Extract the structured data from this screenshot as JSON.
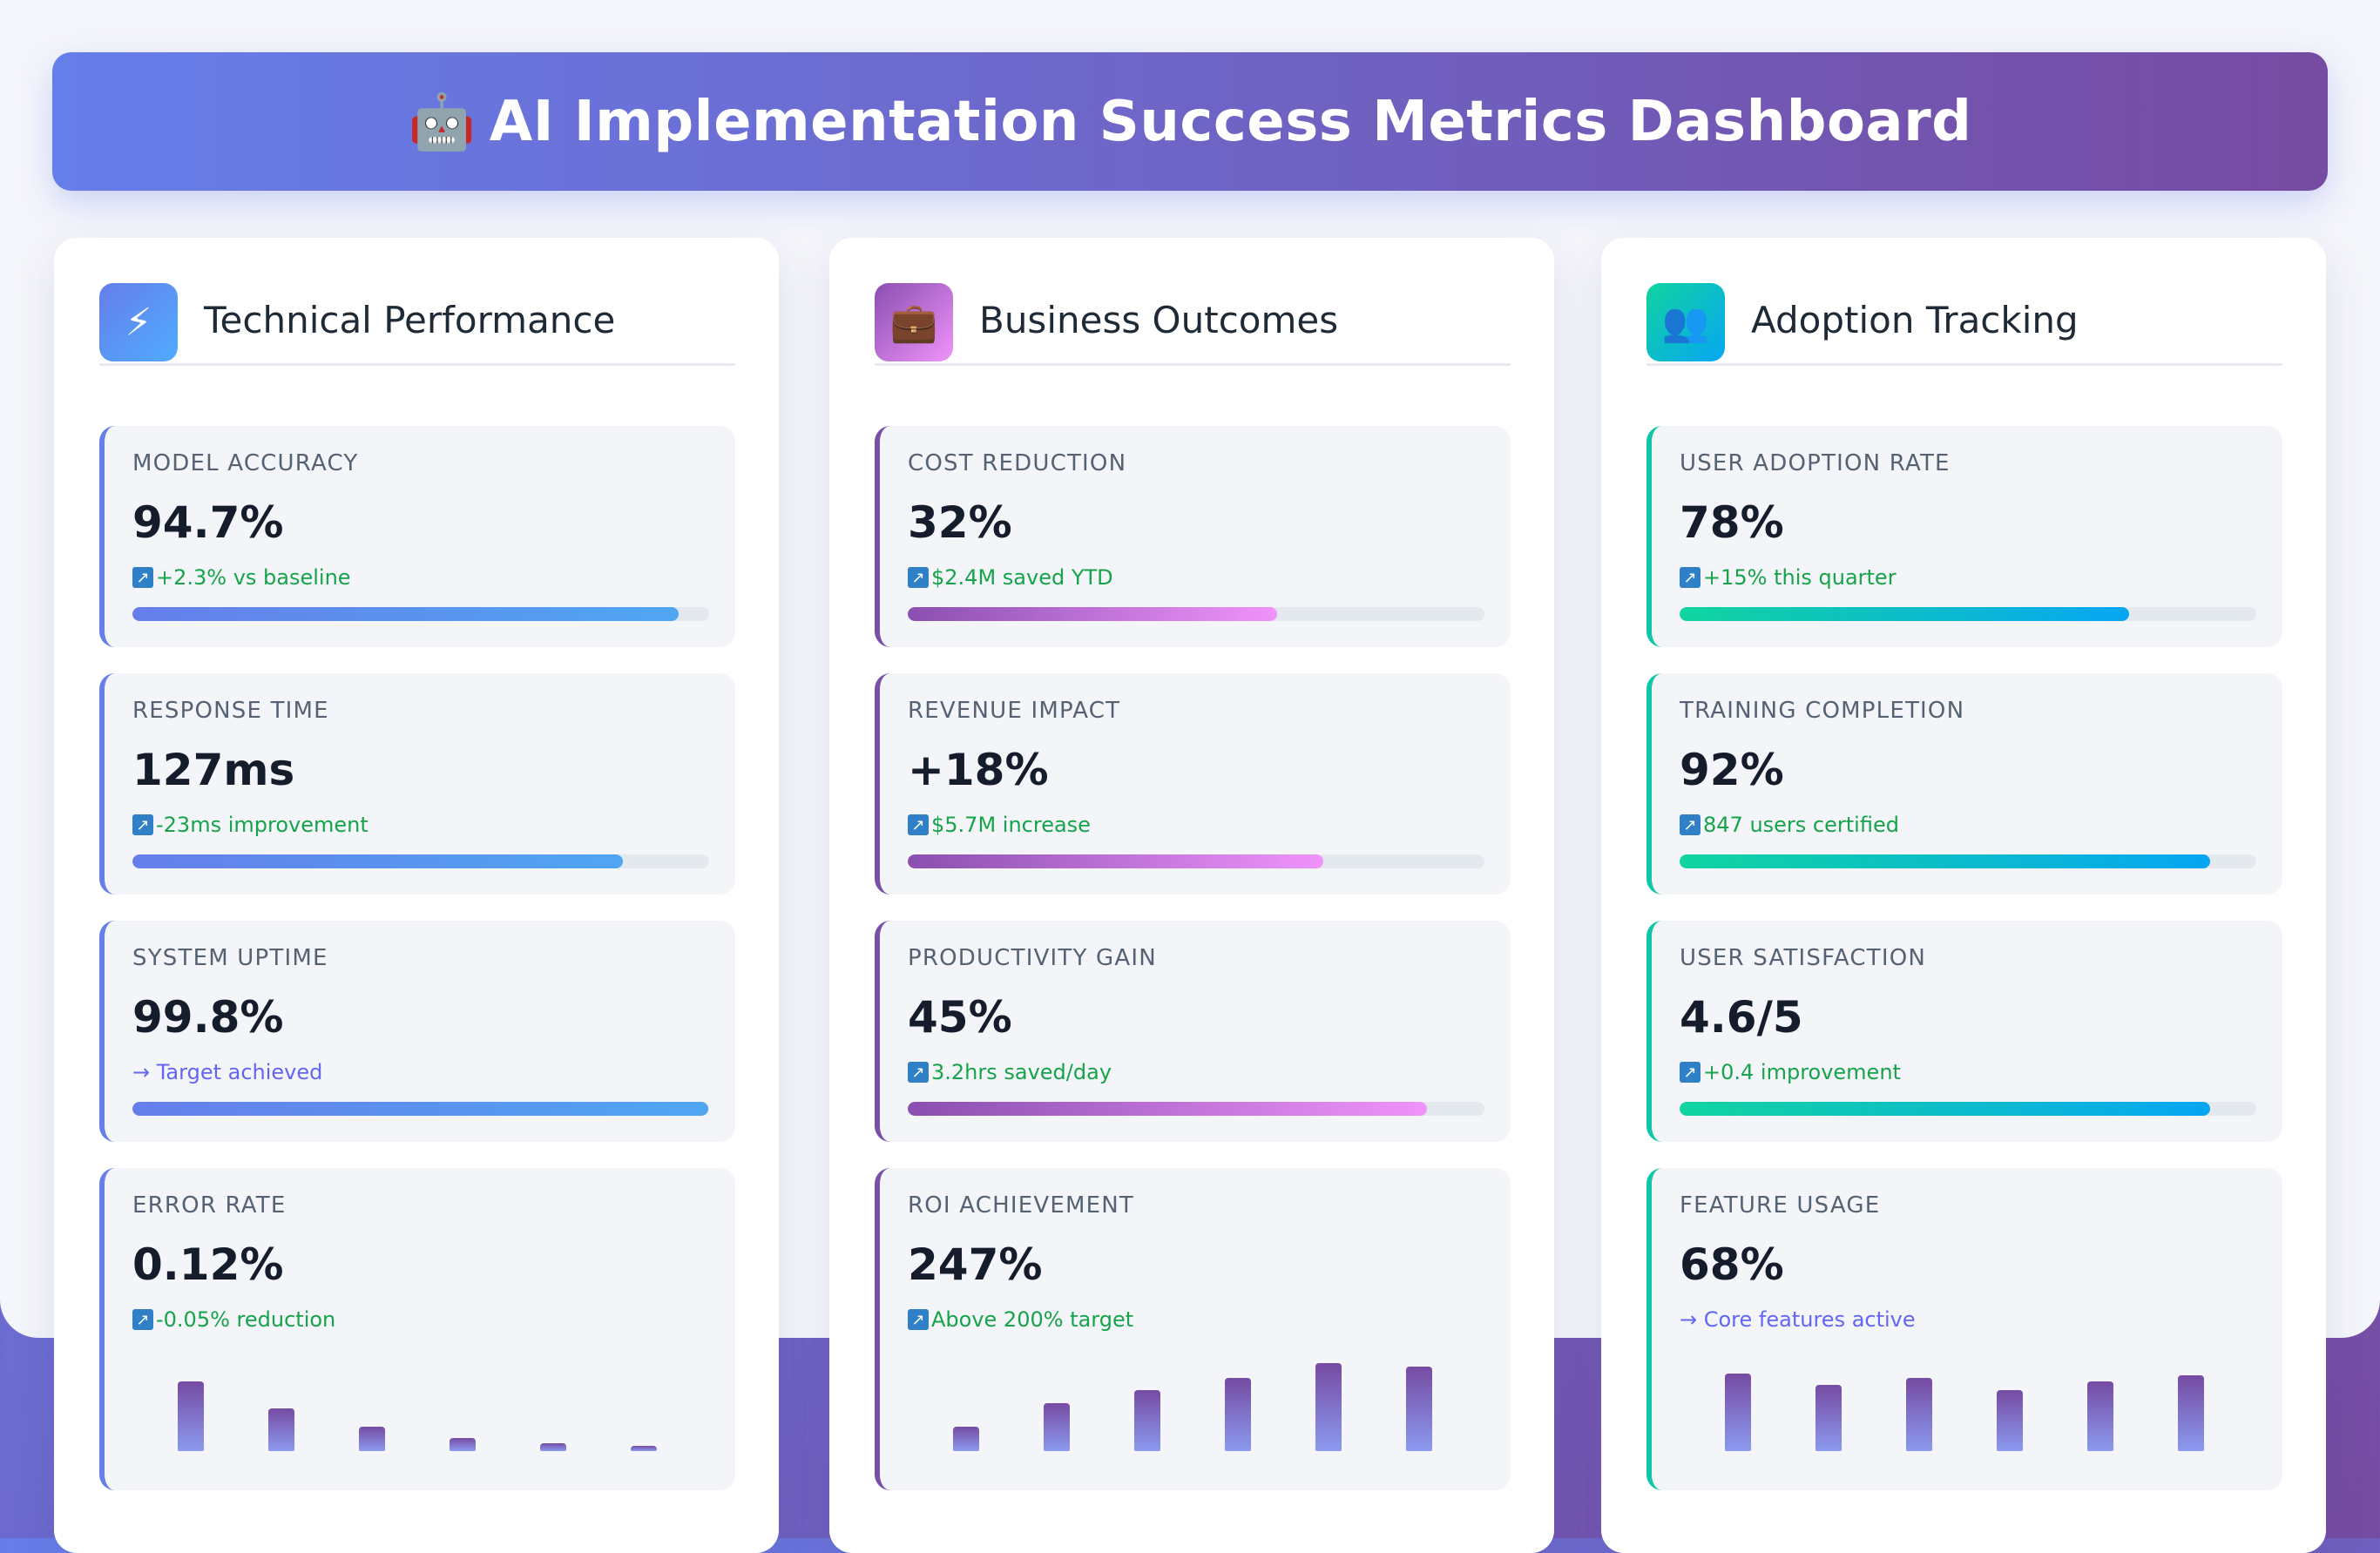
{
  "header": {
    "icon": "🤖",
    "title": "AI Implementation Success Metrics Dashboard"
  },
  "colors": {
    "tech": "#667eea",
    "business": "#764ba2",
    "adoption": "#11c5a7",
    "positive": "#16a34a",
    "neutral": "#6366f1"
  },
  "columns": [
    {
      "title": "Technical Performance",
      "icon": "lightning-icon",
      "icon_glyph": "⚡",
      "metrics": [
        {
          "label": "MODEL ACCURACY",
          "value": "94.7%",
          "change": "+2.3% vs baseline",
          "trend": "up",
          "progress": 0.947
        },
        {
          "label": "RESPONSE TIME",
          "value": "127ms",
          "change": "-23ms improvement",
          "trend": "up",
          "progress": 0.85
        },
        {
          "label": "SYSTEM UPTIME",
          "value": "99.8%",
          "change": "→ Target achieved",
          "trend": "neutral",
          "progress": 0.998
        },
        {
          "label": "ERROR RATE",
          "value": "0.12%",
          "change": "-0.05% reduction",
          "trend": "up",
          "mini_chart": [
            0.42,
            0.26,
            0.15,
            0.08,
            0.05,
            0.03
          ]
        }
      ]
    },
    {
      "title": "Business Outcomes",
      "icon": "briefcase-icon",
      "icon_glyph": "💼",
      "metrics": [
        {
          "label": "COST REDUCTION",
          "value": "32%",
          "change": "$2.4M saved YTD",
          "trend": "up",
          "progress": 0.64
        },
        {
          "label": "REVENUE IMPACT",
          "value": "+18%",
          "change": "$5.7M increase",
          "trend": "up",
          "progress": 0.72
        },
        {
          "label": "PRODUCTIVITY GAIN",
          "value": "45%",
          "change": "3.2hrs saved/day",
          "trend": "up",
          "progress": 0.9
        },
        {
          "label": "ROI ACHIEVEMENT",
          "value": "247%",
          "change": "Above 200% target",
          "trend": "up",
          "mini_chart": [
            0.15,
            0.29,
            0.37,
            0.44,
            0.53,
            0.51
          ]
        }
      ]
    },
    {
      "title": "Adoption Tracking",
      "icon": "users-icon",
      "icon_glyph": "👥",
      "metrics": [
        {
          "label": "USER ADOPTION RATE",
          "value": "78%",
          "change": "+15% this quarter",
          "trend": "up",
          "progress": 0.78
        },
        {
          "label": "TRAINING COMPLETION",
          "value": "92%",
          "change": "847 users certified",
          "trend": "up",
          "progress": 0.92
        },
        {
          "label": "USER SATISFACTION",
          "value": "4.6/5",
          "change": "+0.4 improvement",
          "trend": "up",
          "progress": 0.92
        },
        {
          "label": "FEATURE USAGE",
          "value": "68%",
          "change": "→ Core features active",
          "trend": "neutral",
          "mini_chart": [
            0.47,
            0.4,
            0.44,
            0.37,
            0.42,
            0.46
          ]
        }
      ]
    }
  ]
}
